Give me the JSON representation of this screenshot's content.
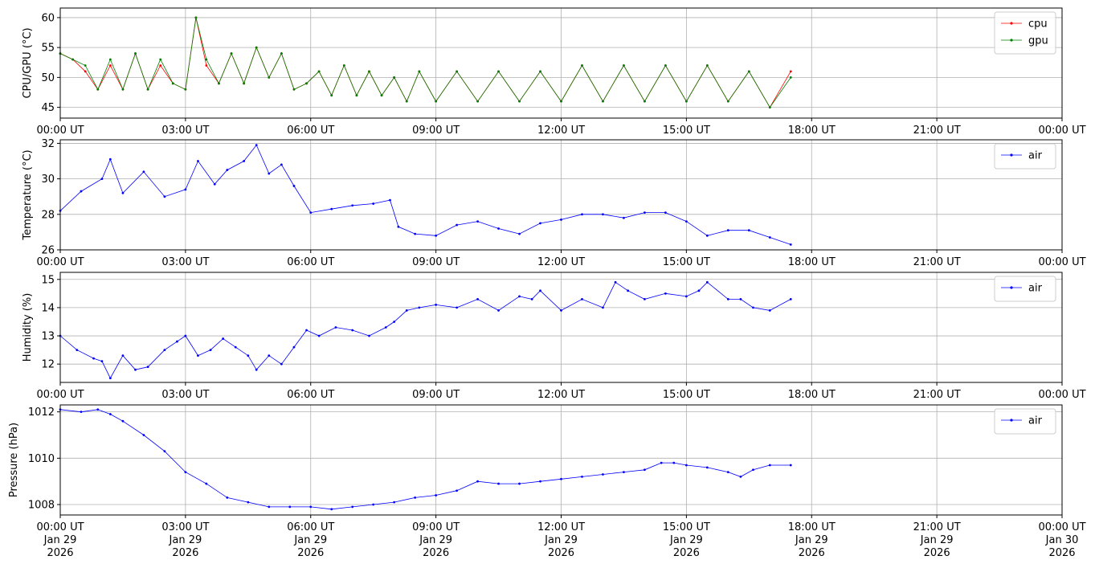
{
  "x_ticks": [
    "00:00 UT",
    "03:00 UT",
    "06:00 UT",
    "09:00 UT",
    "12:00 UT",
    "15:00 UT",
    "18:00 UT",
    "21:00 UT",
    "00:00 UT"
  ],
  "x_tick_dates": [
    [
      "Jan 29",
      "2026"
    ],
    [
      "Jan 29",
      "2026"
    ],
    [
      "Jan 29",
      "2026"
    ],
    [
      "Jan 29",
      "2026"
    ],
    [
      "Jan 29",
      "2026"
    ],
    [
      "Jan 29",
      "2026"
    ],
    [
      "Jan 29",
      "2026"
    ],
    [
      "Jan 29",
      "2026"
    ],
    [
      "Jan 30",
      "2026"
    ]
  ],
  "chart_data": [
    {
      "type": "line",
      "ylabel": "CPU/GPU (°C)",
      "yticks": [
        45,
        50,
        55,
        60
      ],
      "ylim": [
        43.2,
        61.6
      ],
      "xlim_hours": [
        0,
        24
      ],
      "legend": "top-right",
      "grid": true,
      "series": [
        {
          "name": "cpu",
          "color": "#ff0000",
          "x": [
            0.0,
            0.3,
            0.6,
            0.9,
            1.2,
            1.5,
            1.8,
            2.1,
            2.4,
            2.7,
            3.0,
            3.25,
            3.5,
            3.8,
            4.1,
            4.4,
            4.7,
            5.0,
            5.3,
            5.6,
            5.9,
            6.2,
            6.5,
            6.8,
            7.1,
            7.4,
            7.7,
            8.0,
            8.3,
            8.6,
            9.0,
            9.5,
            10.0,
            10.5,
            11.0,
            11.5,
            12.0,
            12.5,
            13.0,
            13.5,
            14.0,
            14.5,
            15.0,
            15.5,
            16.0,
            16.5,
            17.0,
            17.5
          ],
          "y": [
            54,
            53,
            51,
            48,
            52,
            48,
            54,
            48,
            52,
            49,
            48,
            60,
            52,
            49,
            54,
            49,
            55,
            50,
            54,
            48,
            49,
            51,
            47,
            52,
            47,
            51,
            47,
            50,
            46,
            51,
            46,
            51,
            46,
            51,
            46,
            51,
            46,
            52,
            46,
            52,
            46,
            52,
            46,
            52,
            46,
            51,
            45,
            51
          ]
        },
        {
          "name": "gpu",
          "color": "#008000",
          "x": [
            0.0,
            0.3,
            0.6,
            0.9,
            1.2,
            1.5,
            1.8,
            2.1,
            2.4,
            2.7,
            3.0,
            3.25,
            3.5,
            3.8,
            4.1,
            4.4,
            4.7,
            5.0,
            5.3,
            5.6,
            5.9,
            6.2,
            6.5,
            6.8,
            7.1,
            7.4,
            7.7,
            8.0,
            8.3,
            8.6,
            9.0,
            9.5,
            10.0,
            10.5,
            11.0,
            11.5,
            12.0,
            12.5,
            13.0,
            13.5,
            14.0,
            14.5,
            15.0,
            15.5,
            16.0,
            16.5,
            17.0,
            17.5
          ],
          "y": [
            54,
            53,
            52,
            48,
            53,
            48,
            54,
            48,
            53,
            49,
            48,
            60,
            53,
            49,
            54,
            49,
            55,
            50,
            54,
            48,
            49,
            51,
            47,
            52,
            47,
            51,
            47,
            50,
            46,
            51,
            46,
            51,
            46,
            51,
            46,
            51,
            46,
            52,
            46,
            52,
            46,
            52,
            46,
            52,
            46,
            51,
            45,
            50
          ]
        }
      ]
    },
    {
      "type": "line",
      "ylabel": "Temperature (°C)",
      "yticks": [
        26,
        28,
        30,
        32
      ],
      "ylim": [
        26,
        32.2
      ],
      "xlim_hours": [
        0,
        24
      ],
      "legend": "top-right",
      "grid": true,
      "series": [
        {
          "name": "air",
          "color": "#0000ff",
          "x": [
            0.0,
            0.5,
            1.0,
            1.2,
            1.5,
            2.0,
            2.5,
            3.0,
            3.3,
            3.7,
            4.0,
            4.4,
            4.7,
            5.0,
            5.3,
            5.6,
            6.0,
            6.5,
            7.0,
            7.5,
            7.9,
            8.1,
            8.5,
            9.0,
            9.5,
            10.0,
            10.5,
            11.0,
            11.5,
            12.0,
            12.5,
            13.0,
            13.5,
            14.0,
            14.5,
            15.0,
            15.5,
            16.0,
            16.5,
            17.0,
            17.5
          ],
          "y": [
            28.2,
            29.3,
            30.0,
            31.1,
            29.2,
            30.4,
            29.0,
            29.4,
            31.0,
            29.7,
            30.5,
            31.0,
            31.9,
            30.3,
            30.8,
            29.6,
            28.1,
            28.3,
            28.5,
            28.6,
            28.8,
            27.3,
            26.9,
            26.8,
            27.4,
            27.6,
            27.2,
            26.9,
            27.5,
            27.7,
            28.0,
            28.0,
            27.8,
            28.1,
            28.1,
            27.6,
            26.8,
            27.1,
            27.1,
            26.7,
            26.3
          ]
        }
      ]
    },
    {
      "type": "line",
      "ylabel": "Humidity (%)",
      "yticks": [
        12,
        13,
        14,
        15
      ],
      "ylim": [
        11.35,
        15.25
      ],
      "xlim_hours": [
        0,
        24
      ],
      "legend": "top-right",
      "grid": true,
      "series": [
        {
          "name": "air",
          "color": "#0000ff",
          "x": [
            0.0,
            0.4,
            0.8,
            1.0,
            1.2,
            1.5,
            1.8,
            2.1,
            2.5,
            2.8,
            3.0,
            3.3,
            3.6,
            3.9,
            4.2,
            4.5,
            4.7,
            5.0,
            5.3,
            5.6,
            5.9,
            6.2,
            6.6,
            7.0,
            7.4,
            7.8,
            8.0,
            8.3,
            8.6,
            9.0,
            9.5,
            10.0,
            10.5,
            11.0,
            11.3,
            11.5,
            12.0,
            12.5,
            13.0,
            13.3,
            13.6,
            14.0,
            14.5,
            15.0,
            15.3,
            15.5,
            16.0,
            16.3,
            16.6,
            17.0,
            17.5
          ],
          "y": [
            13.0,
            12.5,
            12.2,
            12.1,
            11.5,
            12.3,
            11.8,
            11.9,
            12.5,
            12.8,
            13.0,
            12.3,
            12.5,
            12.9,
            12.6,
            12.3,
            11.8,
            12.3,
            12.0,
            12.6,
            13.2,
            13.0,
            13.3,
            13.2,
            13.0,
            13.3,
            13.5,
            13.9,
            14.0,
            14.1,
            14.0,
            14.3,
            13.9,
            14.4,
            14.3,
            14.6,
            13.9,
            14.3,
            14.0,
            14.9,
            14.6,
            14.3,
            14.5,
            14.4,
            14.6,
            14.9,
            14.3,
            14.3,
            14.0,
            13.9,
            14.3
          ]
        }
      ]
    },
    {
      "type": "line",
      "ylabel": "Pressure (hPa)",
      "yticks": [
        1008,
        1010,
        1012
      ],
      "ylim": [
        1007.55,
        1012.3
      ],
      "xlim_hours": [
        0,
        24
      ],
      "legend": "top-right",
      "grid": true,
      "series": [
        {
          "name": "air",
          "color": "#0000ff",
          "x": [
            0.0,
            0.5,
            0.9,
            1.2,
            1.5,
            2.0,
            2.5,
            3.0,
            3.5,
            4.0,
            4.5,
            5.0,
            5.5,
            6.0,
            6.5,
            7.0,
            7.5,
            8.0,
            8.5,
            9.0,
            9.5,
            10.0,
            10.5,
            11.0,
            11.5,
            12.0,
            12.5,
            13.0,
            13.5,
            14.0,
            14.4,
            14.7,
            15.0,
            15.5,
            16.0,
            16.3,
            16.6,
            17.0,
            17.5
          ],
          "y": [
            1012.1,
            1012.0,
            1012.1,
            1011.9,
            1011.6,
            1011.0,
            1010.3,
            1009.4,
            1008.9,
            1008.3,
            1008.1,
            1007.9,
            1007.9,
            1007.9,
            1007.8,
            1007.9,
            1008.0,
            1008.1,
            1008.3,
            1008.4,
            1008.6,
            1009.0,
            1008.9,
            1008.9,
            1009.0,
            1009.1,
            1009.2,
            1009.3,
            1009.4,
            1009.5,
            1009.8,
            1009.8,
            1009.7,
            1009.6,
            1009.4,
            1009.2,
            1009.5,
            1009.7,
            1009.7
          ]
        }
      ]
    }
  ]
}
